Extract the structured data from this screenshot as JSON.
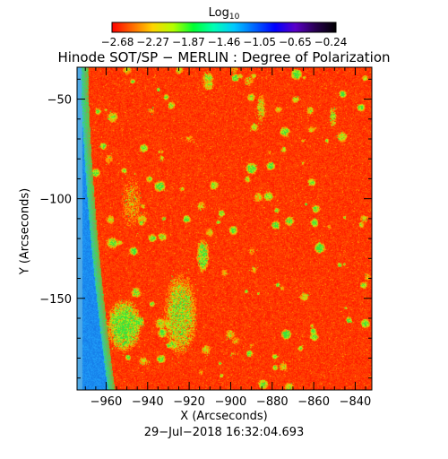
{
  "colorbar": {
    "title_main": "Log",
    "title_sub": "10",
    "tick_labels": [
      "−2.68",
      "−2.27",
      "−1.87",
      "−1.46",
      "−1.05",
      "−0.65",
      "−0.24"
    ],
    "colormap": [
      "#ff0000",
      "#ff6a00",
      "#ffd400",
      "#b4ff00",
      "#00ff32",
      "#00ffb4",
      "#00c8ff",
      "#0064ff",
      "#0000ff",
      "#5a00c8",
      "#280050",
      "#000000"
    ]
  },
  "chart_data": {
    "type": "heatmap",
    "title": "Hinode SOT/SP − MERLIN : Degree of Polarization",
    "xlabel": "X (Arcseconds)",
    "ylabel": "Y (Arcseconds)",
    "xlim": [
      -974,
      -832
    ],
    "ylim": [
      -196,
      -34
    ],
    "x_ticks": [
      -960,
      -940,
      -920,
      -900,
      -880,
      -860,
      -840
    ],
    "x_tick_labels": [
      "−960",
      "−940",
      "−920",
      "−900",
      "−880",
      "−860",
      "−840"
    ],
    "y_ticks": [
      -50,
      -100,
      -150
    ],
    "y_tick_labels": [
      "−50",
      "−100",
      "−150"
    ],
    "color_range_log10": [
      -2.68,
      -0.24
    ],
    "colors": {
      "background": "#ff2a00",
      "limb": "#2f8fff",
      "plage": "#33dd33"
    }
  },
  "timestamp": "29−Jul−2018 16:32:04.693"
}
